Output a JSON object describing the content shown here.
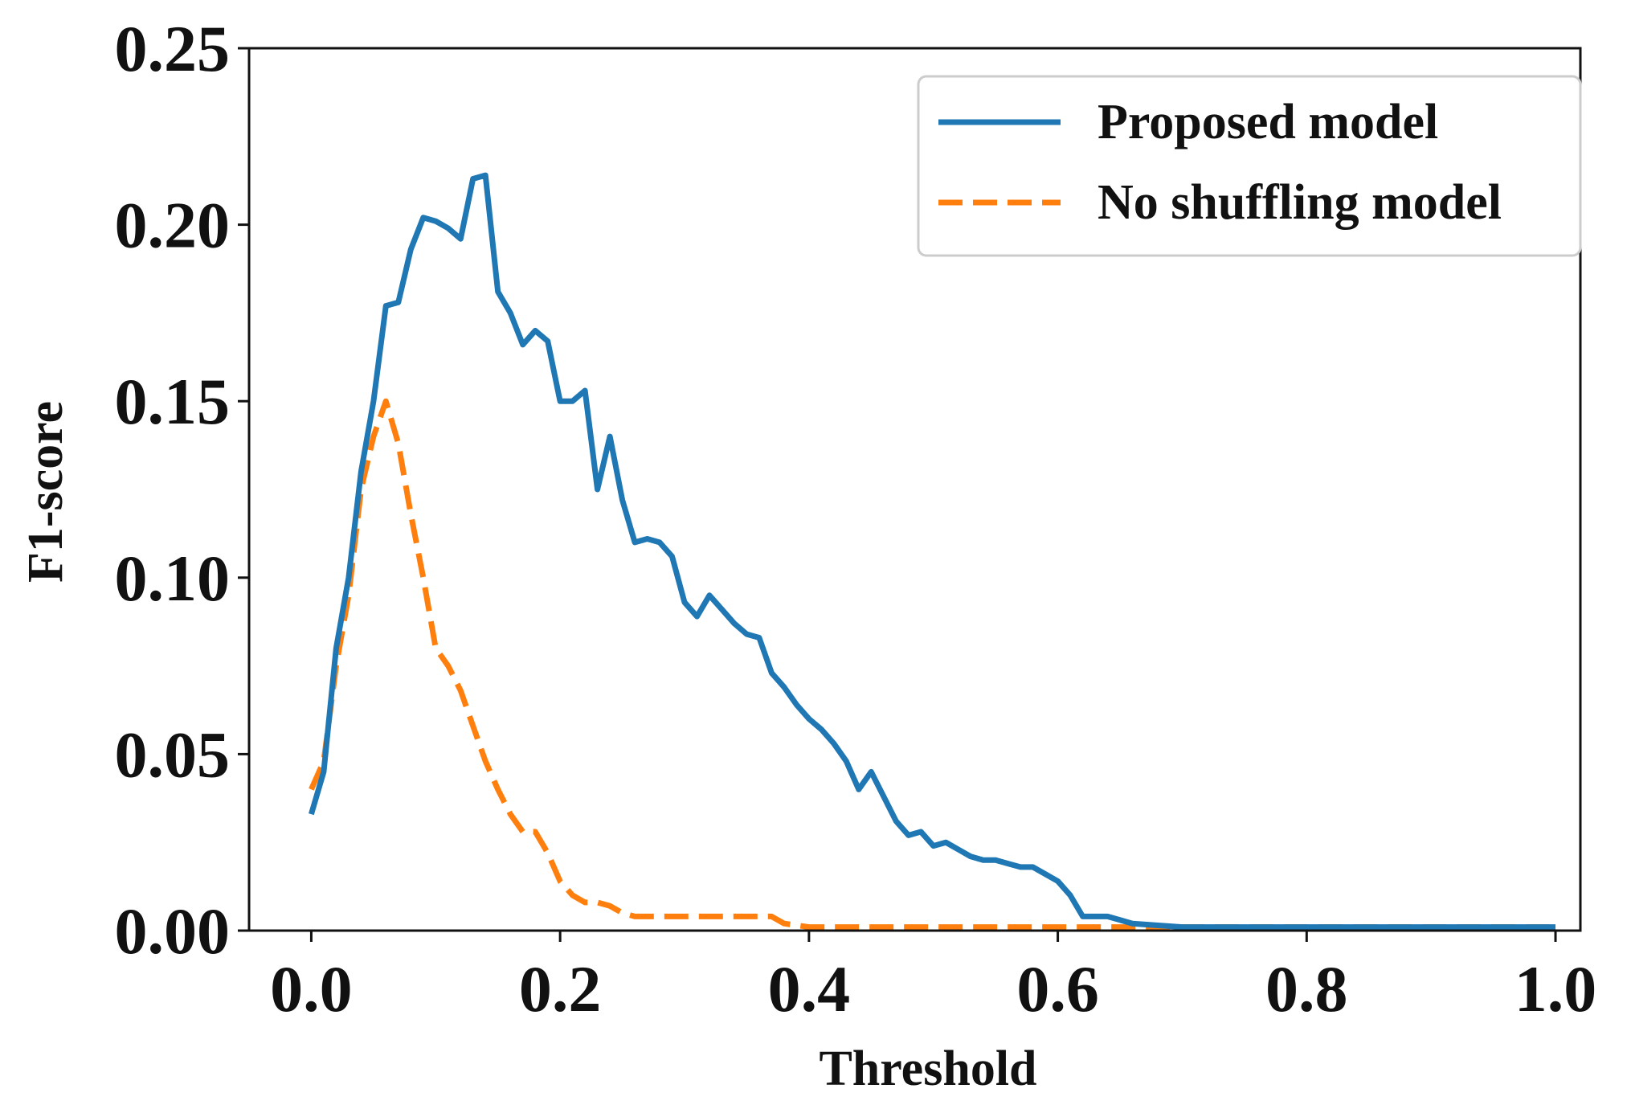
{
  "chart_data": {
    "type": "line",
    "title": "",
    "xlabel": "Threshold",
    "ylabel": "F1-score",
    "xlim": [
      -0.05,
      1.02
    ],
    "ylim": [
      0,
      0.25
    ],
    "xticks": [
      0.0,
      0.2,
      0.4,
      0.6,
      0.8,
      1.0
    ],
    "xtick_labels": [
      "0.0",
      "0.2",
      "0.4",
      "0.6",
      "0.8",
      "1.0"
    ],
    "yticks": [
      0.0,
      0.05,
      0.1,
      0.15,
      0.2,
      0.25
    ],
    "ytick_labels": [
      "0.00",
      "0.05",
      "0.10",
      "0.15",
      "0.20",
      "0.25"
    ],
    "grid": false,
    "legend_position": "top-right",
    "series": [
      {
        "name": "Proposed model",
        "color": "#1f77b4",
        "style": "solid",
        "x": [
          0.0,
          0.01,
          0.02,
          0.03,
          0.04,
          0.05,
          0.06,
          0.07,
          0.08,
          0.09,
          0.1,
          0.11,
          0.12,
          0.13,
          0.14,
          0.15,
          0.16,
          0.17,
          0.18,
          0.19,
          0.2,
          0.21,
          0.22,
          0.23,
          0.24,
          0.25,
          0.26,
          0.27,
          0.28,
          0.29,
          0.3,
          0.31,
          0.32,
          0.33,
          0.34,
          0.35,
          0.36,
          0.37,
          0.38,
          0.39,
          0.4,
          0.41,
          0.42,
          0.43,
          0.44,
          0.45,
          0.46,
          0.47,
          0.48,
          0.49,
          0.5,
          0.51,
          0.52,
          0.53,
          0.54,
          0.55,
          0.56,
          0.57,
          0.58,
          0.59,
          0.6,
          0.61,
          0.62,
          0.63,
          0.64,
          0.65,
          0.66,
          0.7,
          0.8,
          0.9,
          1.0
        ],
        "values": [
          0.033,
          0.045,
          0.08,
          0.1,
          0.13,
          0.15,
          0.177,
          0.178,
          0.193,
          0.202,
          0.201,
          0.199,
          0.196,
          0.213,
          0.214,
          0.181,
          0.175,
          0.166,
          0.17,
          0.167,
          0.15,
          0.15,
          0.153,
          0.125,
          0.14,
          0.122,
          0.11,
          0.111,
          0.11,
          0.106,
          0.093,
          0.089,
          0.095,
          0.091,
          0.087,
          0.084,
          0.083,
          0.073,
          0.069,
          0.064,
          0.06,
          0.057,
          0.053,
          0.048,
          0.04,
          0.045,
          0.038,
          0.031,
          0.027,
          0.028,
          0.024,
          0.025,
          0.023,
          0.021,
          0.02,
          0.02,
          0.019,
          0.018,
          0.018,
          0.016,
          0.014,
          0.01,
          0.004,
          0.004,
          0.004,
          0.003,
          0.002,
          0.001,
          0.001,
          0.001,
          0.001
        ]
      },
      {
        "name": "No shuffling model",
        "color": "#ff7f0e",
        "style": "dashed",
        "x": [
          0.0,
          0.01,
          0.02,
          0.03,
          0.04,
          0.05,
          0.06,
          0.07,
          0.08,
          0.09,
          0.1,
          0.11,
          0.12,
          0.13,
          0.14,
          0.15,
          0.16,
          0.17,
          0.18,
          0.19,
          0.2,
          0.21,
          0.22,
          0.23,
          0.24,
          0.25,
          0.26,
          0.3,
          0.35,
          0.37,
          0.38,
          0.4,
          0.5,
          0.6,
          0.7,
          0.8,
          0.9,
          1.0
        ],
        "values": [
          0.04,
          0.048,
          0.075,
          0.095,
          0.125,
          0.14,
          0.15,
          0.138,
          0.118,
          0.1,
          0.08,
          0.075,
          0.068,
          0.058,
          0.048,
          0.04,
          0.033,
          0.028,
          0.028,
          0.022,
          0.014,
          0.01,
          0.008,
          0.008,
          0.007,
          0.005,
          0.004,
          0.004,
          0.004,
          0.004,
          0.002,
          0.001,
          0.001,
          0.001,
          0.001,
          0.001,
          0.001,
          0.001
        ]
      }
    ]
  }
}
